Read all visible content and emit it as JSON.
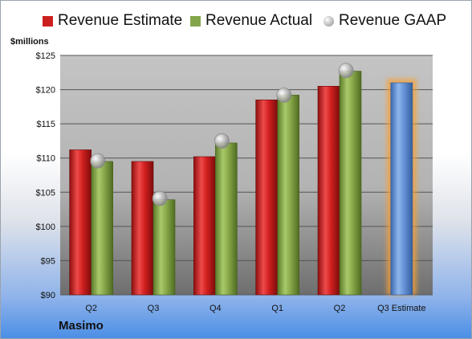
{
  "company": "Masimo",
  "chart_data": {
    "type": "bar",
    "ylabel": "$millions",
    "ylim": [
      90,
      125
    ],
    "ytick_step": 5,
    "ytick_prefix": "$",
    "ytick_labels": [
      "$90",
      "$95",
      "$100",
      "$105",
      "$110",
      "$115",
      "$120",
      "$125"
    ],
    "grid": true,
    "legend_position": "top",
    "categories": [
      "Q2",
      "Q3",
      "Q4",
      "Q1",
      "Q2",
      "Q3 Estimate"
    ],
    "series": [
      {
        "name": "Revenue Estimate",
        "type": "bar",
        "color": "#cc1f1f",
        "values": [
          111.2,
          109.5,
          110.2,
          118.5,
          120.5,
          null
        ]
      },
      {
        "name": "Revenue Actual",
        "type": "bar",
        "color": "#84a64a",
        "values": [
          109.5,
          103.9,
          112.2,
          119.2,
          122.7,
          null
        ]
      },
      {
        "name": "Revenue GAAP",
        "type": "marker",
        "color": "#b8b8b8",
        "values": [
          109.6,
          104.1,
          112.5,
          119.2,
          122.8,
          null
        ]
      },
      {
        "name": "",
        "type": "bar",
        "color": "#5b8fd6",
        "highlight": "#f7a035",
        "values": [
          null,
          null,
          null,
          null,
          null,
          121.0
        ]
      }
    ]
  }
}
